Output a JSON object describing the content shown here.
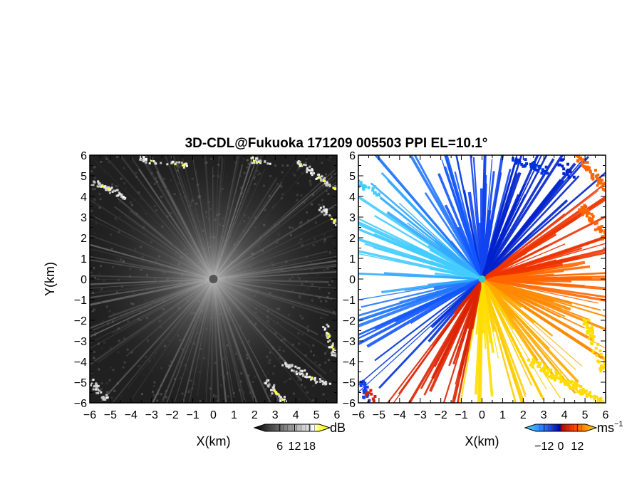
{
  "title": "3D-CDL@Fukuoka 171209 005503 PPI EL=10.1°",
  "chart_data": [
    {
      "type": "heatmap",
      "panel": "reflectivity",
      "xlabel": "X(km)",
      "ylabel": "Y(km)",
      "xlim": [
        -6,
        6
      ],
      "ylim": [
        -6,
        6
      ],
      "x_ticks": [
        "−6",
        "−5",
        "−4",
        "−3",
        "−2",
        "−1",
        "0",
        "1",
        "2",
        "3",
        "4",
        "5",
        "6"
      ],
      "y_ticks": [
        "6",
        "5",
        "4",
        "3",
        "2",
        "1",
        "0",
        "−1",
        "−2",
        "−3",
        "−4",
        "−5",
        "−6"
      ],
      "colorbar": {
        "unit": "dB",
        "tick_labels": [
          "6",
          "12",
          "18"
        ],
        "tick_values": [
          6,
          12,
          18
        ],
        "range": [
          0,
          22
        ],
        "colors": [
          "#000000",
          "#ffffff",
          "#ffff33"
        ]
      }
    },
    {
      "type": "heatmap",
      "panel": "doppler_velocity",
      "xlabel": "X(km)",
      "ylabel": "",
      "xlim": [
        -6,
        6
      ],
      "ylim": [
        -6,
        6
      ],
      "x_ticks": [
        "−6",
        "−5",
        "−4",
        "−3",
        "−2",
        "−1",
        "0",
        "1",
        "2",
        "3",
        "4",
        "5",
        "6"
      ],
      "y_ticks": [
        "6",
        "5",
        "4",
        "3",
        "2",
        "1",
        "0",
        "−1",
        "−2",
        "−3",
        "−4",
        "−5",
        "−6"
      ],
      "colorbar": {
        "unit": "ms",
        "unit_exp": "−1",
        "tick_labels": [
          "−12",
          "0",
          "12"
        ],
        "tick_values": [
          -12,
          0,
          12
        ],
        "range": [
          -18,
          18
        ],
        "colors": [
          "#44ddff",
          "#2266ff",
          "#0000bb",
          "#cc0000",
          "#ff5500",
          "#ffdd00"
        ]
      }
    }
  ]
}
